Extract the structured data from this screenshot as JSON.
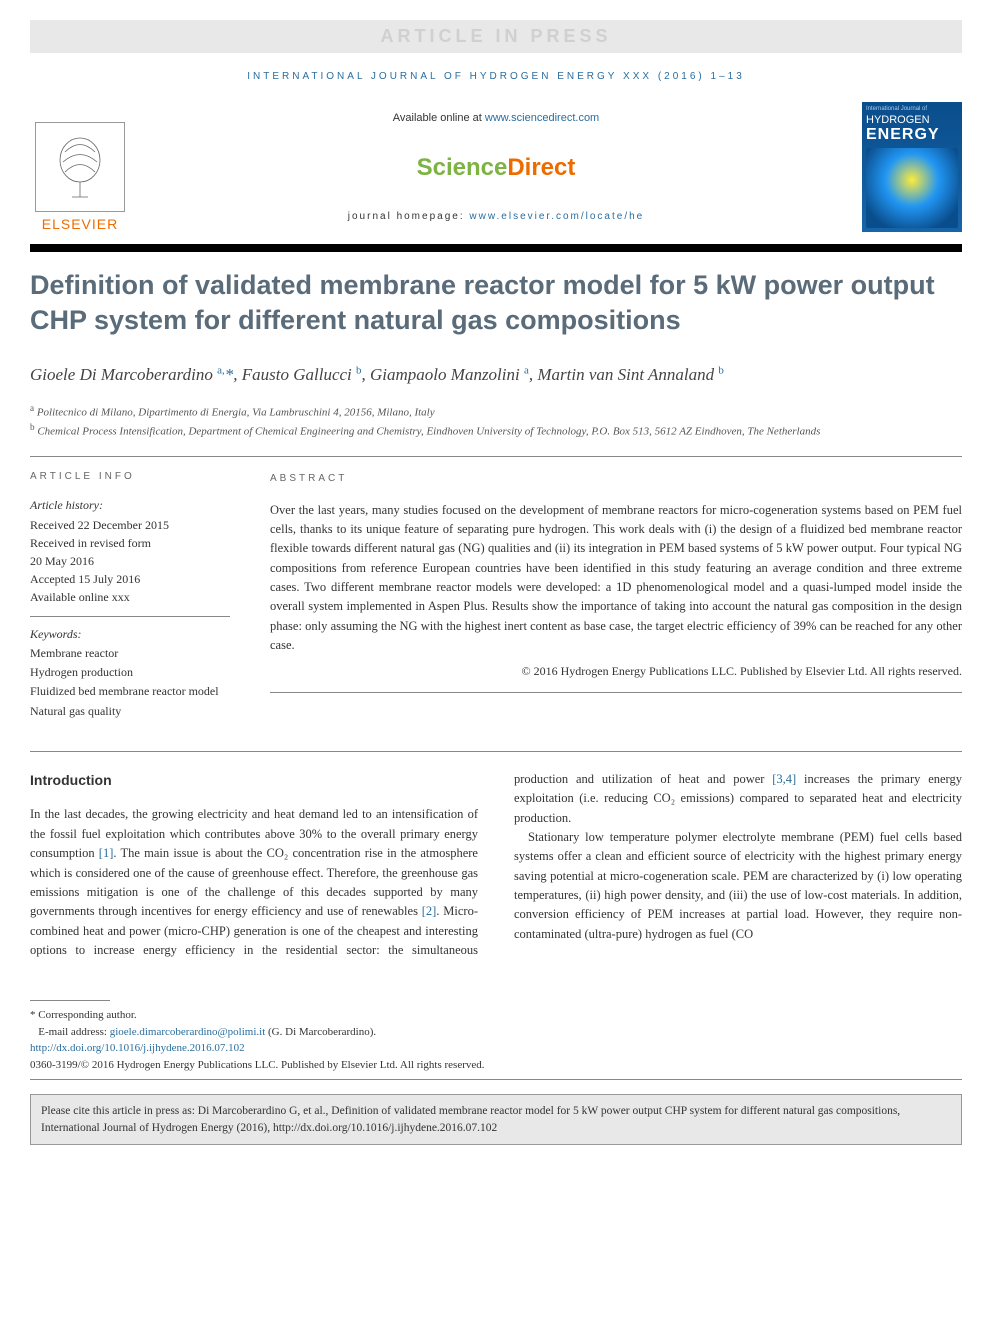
{
  "header": {
    "press_banner": "ARTICLE IN PRESS",
    "journal_ref": "INTERNATIONAL JOURNAL OF HYDROGEN ENERGY XXX (2016) 1–13",
    "available_text": "Available online at ",
    "available_url": "www.sciencedirect.com",
    "sd_logo_a": "Science",
    "sd_logo_b": "Direct",
    "homepage_label": "journal homepage: ",
    "homepage_url": "www.elsevier.com/locate/he",
    "elsevier": "ELSEVIER",
    "cover_top": "International Journal of",
    "cover_h": "HYDROGEN",
    "cover_e": "ENERGY"
  },
  "title": "Definition of validated membrane reactor model for 5 kW power output CHP system for different natural gas compositions",
  "authors_html": "Gioele Di Marcoberardino <sup>a,</sup><span class='ast'>*</span>, Fausto Gallucci <sup>b</sup>, Giampaolo Manzolini <sup>a</sup>, Martin van Sint Annaland <sup>b</sup>",
  "affiliations": {
    "a": "Politecnico di Milano, Dipartimento di Energia, Via Lambruschini 4, 20156, Milano, Italy",
    "b": "Chemical Process Intensification, Department of Chemical Engineering and Chemistry, Eindhoven University of Technology, P.O. Box 513, 5612 AZ Eindhoven, The Netherlands"
  },
  "info": {
    "heading": "ARTICLE INFO",
    "history_head": "Article history:",
    "history": "Received 22 December 2015\nReceived in revised form\n20 May 2016\nAccepted 15 July 2016\nAvailable online xxx",
    "keywords_head": "Keywords:",
    "keywords": "Membrane reactor\nHydrogen production\nFluidized bed membrane reactor model\nNatural gas quality"
  },
  "abstract": {
    "heading": "ABSTRACT",
    "text": "Over the last years, many studies focused on the development of membrane reactors for micro-cogeneration systems based on PEM fuel cells, thanks to its unique feature of separating pure hydrogen. This work deals with (i) the design of a fluidized bed membrane reactor flexible towards different natural gas (NG) qualities and (ii) its integration in PEM based systems of 5 kW power output. Four typical NG compositions from reference European countries have been identified in this study featuring an average condition and three extreme cases. Two different membrane reactor models were developed: a 1D phenomenological model and a quasi-lumped model inside the overall system implemented in Aspen Plus. Results show the importance of taking into account the natural gas composition in the design phase: only assuming the NG with the highest inert content as base case, the target electric efficiency of 39% can be reached for any other case.",
    "copyright": "© 2016 Hydrogen Energy Publications LLC. Published by Elsevier Ltd. All rights reserved."
  },
  "body": {
    "intro_heading": "Introduction",
    "p1_a": "In the last decades, the growing electricity and heat demand led to an intensification of the fossil fuel exploitation which contributes above 30% to the overall primary energy consumption ",
    "ref1": "[1]",
    "p1_b": ". The main issue is about the CO₂ concentration rise in the atmosphere which is considered one of the cause of greenhouse effect. Therefore, the greenhouse gas emissions mitigation is one of the challenge of this decades supported by many governments through incentives for energy efficiency and use of renewables ",
    "ref2": "[2]",
    "p1_c": ". Micro-combined heat and power (micro-CHP) generation is one of the cheapest and interesting ",
    "p1_d": "options to increase energy efficiency in the residential sector: the simultaneous production and utilization of heat and power ",
    "ref34": "[3,4]",
    "p1_e": " increases the primary energy exploitation (i.e. reducing CO₂ emissions) compared to separated heat and electricity production.",
    "p2": "Stationary low temperature polymer electrolyte membrane (PEM) fuel cells based systems offer a clean and efficient source of electricity with the highest primary energy saving potential at micro-cogeneration scale. PEM are characterized by (i) low operating temperatures, (ii) high power density, and (iii) the use of low-cost materials. In addition, conversion efficiency of PEM increases at partial load. However, they require non-contaminated (ultra-pure) hydrogen as fuel (CO"
  },
  "footer": {
    "corresponding": "* Corresponding author.",
    "email_label": "E-mail address: ",
    "email": "gioele.dimarcoberardino@polimi.it",
    "email_owner": " (G. Di Marcoberardino).",
    "doi": "http://dx.doi.org/10.1016/j.ijhydene.2016.07.102",
    "copyright_line": "0360-3199/© 2016 Hydrogen Energy Publications LLC. Published by Elsevier Ltd. All rights reserved.",
    "cite_box": "Please cite this article in press as: Di Marcoberardino G, et al., Definition of validated membrane reactor model for 5 kW power output CHP system for different natural gas compositions, International Journal of Hydrogen Energy (2016), http://dx.doi.org/10.1016/j.ijhydene.2016.07.102"
  },
  "colors": {
    "link": "#2a6d9e",
    "elsevier_orange": "#ed6c00",
    "sd_green": "#7cb342",
    "title_gray": "#5a6b7a",
    "box_bg": "#e8e8e8"
  }
}
